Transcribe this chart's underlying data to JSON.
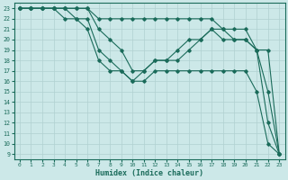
{
  "xlabel": "Humidex (Indice chaleur)",
  "xlim": [
    -0.5,
    23.5
  ],
  "ylim": [
    8.5,
    23.5
  ],
  "xticks": [
    0,
    1,
    2,
    3,
    4,
    5,
    6,
    7,
    8,
    9,
    10,
    11,
    12,
    13,
    14,
    15,
    16,
    17,
    18,
    19,
    20,
    21,
    22,
    23
  ],
  "yticks": [
    9,
    10,
    11,
    12,
    13,
    14,
    15,
    16,
    17,
    18,
    19,
    20,
    21,
    22,
    23
  ],
  "bg_color": "#cce8e8",
  "line_color": "#1a6b5a",
  "grid_color": "#b0d0d0",
  "lines": [
    {
      "x": [
        0,
        1,
        2,
        3,
        4,
        5,
        6,
        7,
        8,
        9,
        10,
        11,
        12,
        13,
        14,
        15,
        16,
        17,
        18,
        19,
        20,
        21,
        22,
        23
      ],
      "y": [
        23,
        23,
        23,
        23,
        23,
        23,
        23,
        22,
        22,
        22,
        22,
        22,
        22,
        22,
        22,
        22,
        22,
        22,
        21,
        21,
        21,
        19,
        19,
        9
      ]
    },
    {
      "x": [
        0,
        1,
        2,
        3,
        4,
        5,
        6,
        7,
        8,
        9,
        10,
        11,
        12,
        13,
        14,
        15,
        16,
        17,
        18,
        19,
        20,
        21,
        22,
        23
      ],
      "y": [
        23,
        23,
        23,
        23,
        23,
        23,
        23,
        21,
        20,
        19,
        17,
        17,
        18,
        18,
        19,
        20,
        20,
        21,
        21,
        20,
        20,
        19,
        15,
        9
      ]
    },
    {
      "x": [
        0,
        1,
        2,
        3,
        4,
        5,
        6,
        7,
        8,
        9,
        10,
        11,
        12,
        13,
        14,
        15,
        16,
        17,
        18,
        19,
        20,
        21,
        22,
        23
      ],
      "y": [
        23,
        23,
        23,
        23,
        23,
        22,
        22,
        19,
        18,
        17,
        16,
        17,
        18,
        18,
        18,
        19,
        20,
        21,
        20,
        20,
        20,
        19,
        12,
        9
      ]
    },
    {
      "x": [
        0,
        1,
        2,
        3,
        4,
        5,
        6,
        7,
        8,
        9,
        10,
        11,
        12,
        13,
        14,
        15,
        16,
        17,
        18,
        19,
        20,
        21,
        22,
        23
      ],
      "y": [
        23,
        23,
        23,
        23,
        22,
        22,
        21,
        18,
        17,
        17,
        16,
        16,
        17,
        17,
        17,
        17,
        17,
        17,
        17,
        17,
        17,
        15,
        10,
        9
      ]
    }
  ]
}
